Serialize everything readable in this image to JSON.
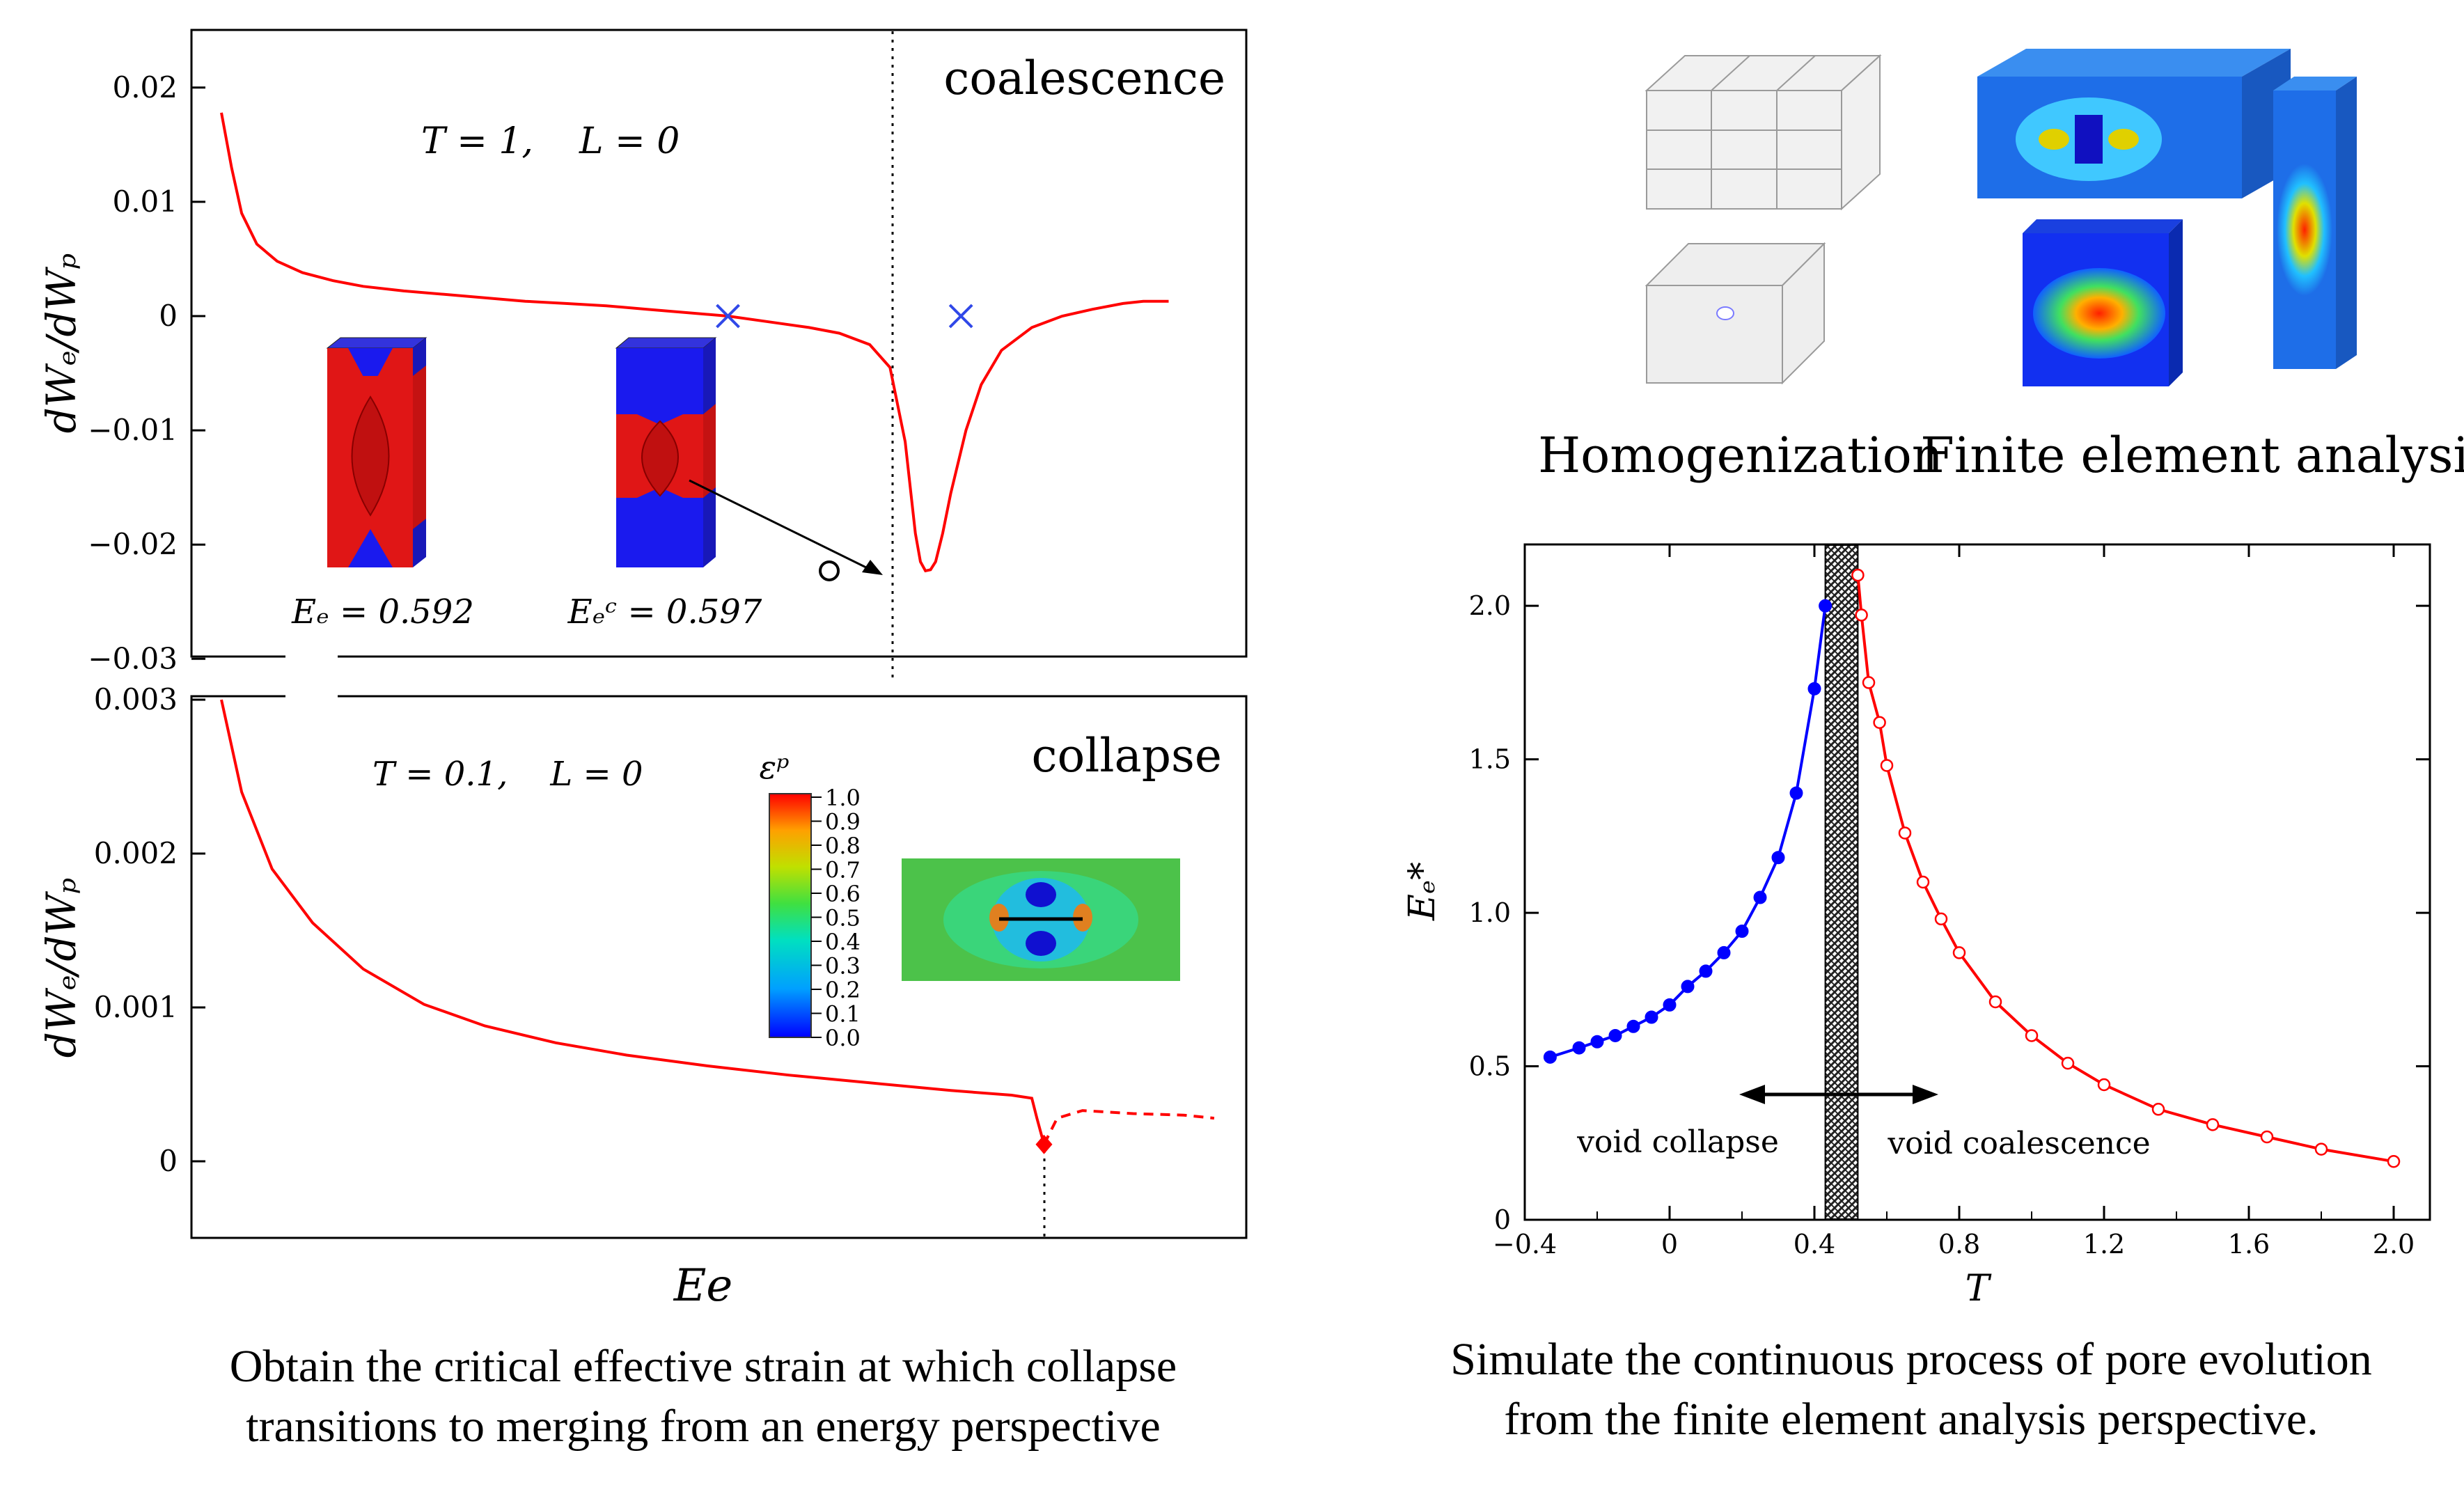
{
  "energy_panel": {
    "xlabel": "Ee",
    "top": {
      "title": "coalescence",
      "params": "T = 1,    L = 0",
      "ylabel": "dWₑ/dWₚ",
      "yticks": [
        "0.02",
        "0.01",
        "0",
        "−0.01",
        "−0.02",
        "−0.03"
      ],
      "inset_label_left": "Eₑ = 0.592",
      "inset_label_right": "Eₑᶜ = 0.597"
    },
    "bottom": {
      "title": "collapse",
      "params": "T = 0.1,    L = 0",
      "ylabel": "dWₑ/dWₚ",
      "yticks": [
        "0.003",
        "0.002",
        "0.001",
        "0"
      ],
      "colorbar_title": "εᵖ",
      "colorbar_ticks": [
        "1.0",
        "0.9",
        "0.8",
        "0.7",
        "0.6",
        "0.5",
        "0.4",
        "0.3",
        "0.2",
        "0.1",
        "0.0"
      ]
    }
  },
  "fe_panel": {
    "label_left": "Homogenization",
    "label_right": "Finite element analysis"
  },
  "chart_data": [
    {
      "type": "line",
      "title": "coalescence",
      "annotation": "T = 1, L = 0",
      "xlabel": "Ee",
      "ylabel": "dWe/dWp",
      "ylim": [
        -0.03,
        0.025
      ],
      "x": [
        0.0,
        0.01,
        0.02,
        0.035,
        0.055,
        0.08,
        0.11,
        0.14,
        0.18,
        0.22,
        0.26,
        0.3,
        0.34,
        0.38,
        0.42,
        0.46,
        0.5,
        0.54,
        0.58,
        0.61,
        0.64,
        0.66,
        0.675,
        0.685,
        0.69,
        0.695,
        0.7,
        0.705,
        0.712,
        0.72,
        0.735,
        0.75,
        0.77,
        0.8,
        0.83,
        0.86,
        0.89,
        0.91,
        0.935
      ],
      "values": [
        0.0178,
        0.013,
        0.009,
        0.0063,
        0.0048,
        0.0038,
        0.0031,
        0.0026,
        0.0022,
        0.0019,
        0.0016,
        0.0013,
        0.0011,
        0.0009,
        0.0006,
        0.0003,
        0.0,
        -0.0005,
        -0.001,
        -0.0015,
        -0.0025,
        -0.0045,
        -0.011,
        -0.019,
        -0.0215,
        -0.0223,
        -0.0222,
        -0.0215,
        -0.019,
        -0.0155,
        -0.01,
        -0.006,
        -0.003,
        -0.001,
        0.0,
        0.0006,
        0.0011,
        0.0013,
        0.0013
      ],
      "markers": [
        {
          "x": 0.5,
          "y": 0.0,
          "symbol": "x",
          "color": "#3048e8"
        },
        {
          "x": 0.73,
          "y": 0.0,
          "symbol": "x",
          "color": "#3048e8"
        },
        {
          "x": 0.6,
          "y": -0.0223,
          "symbol": "open-circle",
          "color": "#000000"
        }
      ],
      "vline_x": 0.6,
      "color": "#ff0000"
    },
    {
      "type": "line",
      "title": "collapse",
      "annotation": "T = 0.1, L = 0",
      "xlabel": "Ee",
      "ylabel": "dWe/dWp",
      "ylim": [
        -0.0005,
        0.003
      ],
      "x": [
        0.0,
        0.02,
        0.05,
        0.09,
        0.14,
        0.2,
        0.26,
        0.33,
        0.4,
        0.48,
        0.56,
        0.64,
        0.72,
        0.78,
        0.8,
        0.805,
        0.812
      ],
      "values": [
        0.003,
        0.0024,
        0.0019,
        0.00155,
        0.00125,
        0.00102,
        0.00088,
        0.00077,
        0.00069,
        0.00062,
        0.00056,
        0.00051,
        0.00046,
        0.00043,
        0.00041,
        0.00028,
        0.00011
      ],
      "dashed_x": [
        0.812,
        0.825,
        0.85,
        0.9,
        0.95,
        0.98
      ],
      "dashed_values": [
        0.00011,
        0.00028,
        0.00033,
        0.00031,
        0.0003,
        0.00028
      ],
      "markers": [
        {
          "x": 0.812,
          "y": 0.00011,
          "symbol": "filled-diamond",
          "color": "#ff0000"
        }
      ],
      "vline_x": 0.812,
      "color": "#ff0000"
    },
    {
      "type": "line",
      "xlabel": "T",
      "ylabel": "Eₑ*",
      "xlim": [
        -0.4,
        2.1
      ],
      "ylim": [
        0,
        2.2
      ],
      "xticks": [
        "−0.4",
        "0",
        "0.4",
        "0.8",
        "1.2",
        "1.6",
        "2.0"
      ],
      "yticks": [
        "0",
        "0.5",
        "1.0",
        "1.5",
        "2.0"
      ],
      "xtick_values": [
        -0.4,
        0,
        0.4,
        0.8,
        1.2,
        1.6,
        2.0
      ],
      "ytick_values": [
        0,
        0.5,
        1.0,
        1.5,
        2.0
      ],
      "band": [
        0.43,
        0.52
      ],
      "series": [
        {
          "name": "void collapse",
          "color": "#0000ff",
          "marker": "filled-circle",
          "x": [
            -0.33,
            -0.25,
            -0.2,
            -0.15,
            -0.1,
            -0.05,
            0.0,
            0.05,
            0.1,
            0.15,
            0.2,
            0.25,
            0.3,
            0.35,
            0.4,
            0.43
          ],
          "values": [
            0.53,
            0.56,
            0.58,
            0.6,
            0.63,
            0.66,
            0.7,
            0.76,
            0.81,
            0.87,
            0.94,
            1.05,
            1.18,
            1.39,
            1.73,
            2.0
          ]
        },
        {
          "name": "void coalescence",
          "color": "#ff0000",
          "marker": "open-circle",
          "x": [
            0.52,
            0.53,
            0.55,
            0.58,
            0.6,
            0.65,
            0.7,
            0.75,
            0.8,
            0.9,
            1.0,
            1.1,
            1.2,
            1.35,
            1.5,
            1.65,
            1.8,
            2.0
          ],
          "values": [
            2.1,
            1.97,
            1.75,
            1.62,
            1.48,
            1.26,
            1.1,
            0.98,
            0.87,
            0.71,
            0.6,
            0.51,
            0.44,
            0.36,
            0.31,
            0.27,
            0.23,
            0.19
          ]
        }
      ]
    }
  ],
  "captions": {
    "left_line1": "Obtain the critical effective strain at which collapse",
    "left_line2": "transitions to merging from an energy perspective",
    "right_line1": "Simulate the continuous process of pore evolution",
    "right_line2": "from the finite element analysis perspective."
  }
}
